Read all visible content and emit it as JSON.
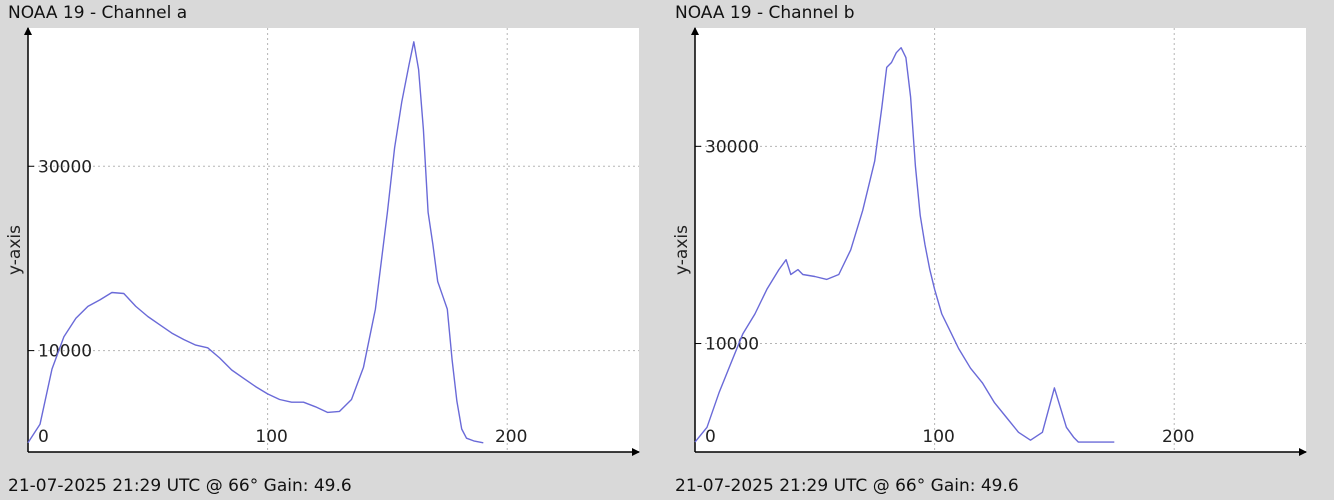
{
  "chart_data": [
    {
      "type": "line",
      "title": "NOAA 19 - Channel a",
      "ylabel": "y-axis",
      "footer": "21-07-2025 21:29 UTC @ 66° Gain: 49.6",
      "xlim": [
        0,
        255
      ],
      "ylim": [
        -1000,
        45000
      ],
      "x_ticks": [
        0,
        100,
        200
      ],
      "x_tick_labels": [
        "0",
        "100",
        "200"
      ],
      "y_ticks": [
        10000,
        30000
      ],
      "y_tick_labels": [
        "10000",
        "30000"
      ],
      "grid": true,
      "line_color": "#6a6ad8",
      "series": [
        {
          "x": [
            0,
            5,
            10,
            15,
            20,
            25,
            30,
            35,
            40,
            45,
            50,
            55,
            60,
            65,
            70,
            75,
            80,
            85,
            90,
            95,
            100,
            105,
            110,
            115,
            120,
            125,
            130,
            135,
            140,
            145,
            150,
            153,
            156,
            159,
            161,
            163,
            165,
            167,
            169,
            171,
            173,
            175,
            177,
            179,
            181,
            183,
            186,
            190
          ],
          "y": [
            0,
            2000,
            8000,
            11500,
            13500,
            14800,
            15500,
            16300,
            16200,
            14800,
            13700,
            12800,
            11900,
            11200,
            10600,
            10300,
            9200,
            7900,
            7000,
            6100,
            5300,
            4700,
            4400,
            4400,
            3900,
            3300,
            3400,
            4700,
            8200,
            14500,
            25000,
            32000,
            37000,
            41000,
            43500,
            40500,
            34000,
            25000,
            21500,
            17500,
            16000,
            14500,
            9000,
            4500,
            1500,
            500,
            200,
            0
          ]
        }
      ]
    },
    {
      "type": "line",
      "title": "NOAA 19 - Channel b",
      "ylabel": "y-axis",
      "footer": "21-07-2025 21:29 UTC @ 66° Gain: 49.6",
      "xlim": [
        0,
        255
      ],
      "ylim": [
        -1000,
        42000
      ],
      "x_ticks": [
        0,
        100,
        200
      ],
      "x_tick_labels": [
        "0",
        "100",
        "200"
      ],
      "y_ticks": [
        10000,
        30000
      ],
      "y_tick_labels": [
        "10000",
        "30000"
      ],
      "grid": true,
      "line_color": "#6a6ad8",
      "series": [
        {
          "x": [
            0,
            5,
            10,
            15,
            20,
            25,
            30,
            35,
            38,
            40,
            43,
            45,
            50,
            55,
            60,
            65,
            70,
            75,
            78,
            80,
            82,
            84,
            86,
            88,
            90,
            92,
            94,
            96,
            98,
            100,
            103,
            106,
            110,
            115,
            120,
            125,
            130,
            135,
            140,
            145,
            150,
            155,
            158,
            160,
            162,
            164,
            166,
            170,
            175
          ],
          "y": [
            0,
            1500,
            5000,
            8000,
            11000,
            13000,
            15500,
            17500,
            18500,
            17000,
            17500,
            17000,
            16800,
            16500,
            17000,
            19500,
            23500,
            28500,
            34000,
            38000,
            38500,
            39500,
            40000,
            39000,
            35000,
            28000,
            23000,
            20000,
            17500,
            15500,
            13000,
            11500,
            9500,
            7500,
            6000,
            4000,
            2500,
            1000,
            200,
            1000,
            5500,
            1500,
            500,
            0,
            0,
            0,
            0,
            0,
            0
          ]
        }
      ]
    }
  ]
}
